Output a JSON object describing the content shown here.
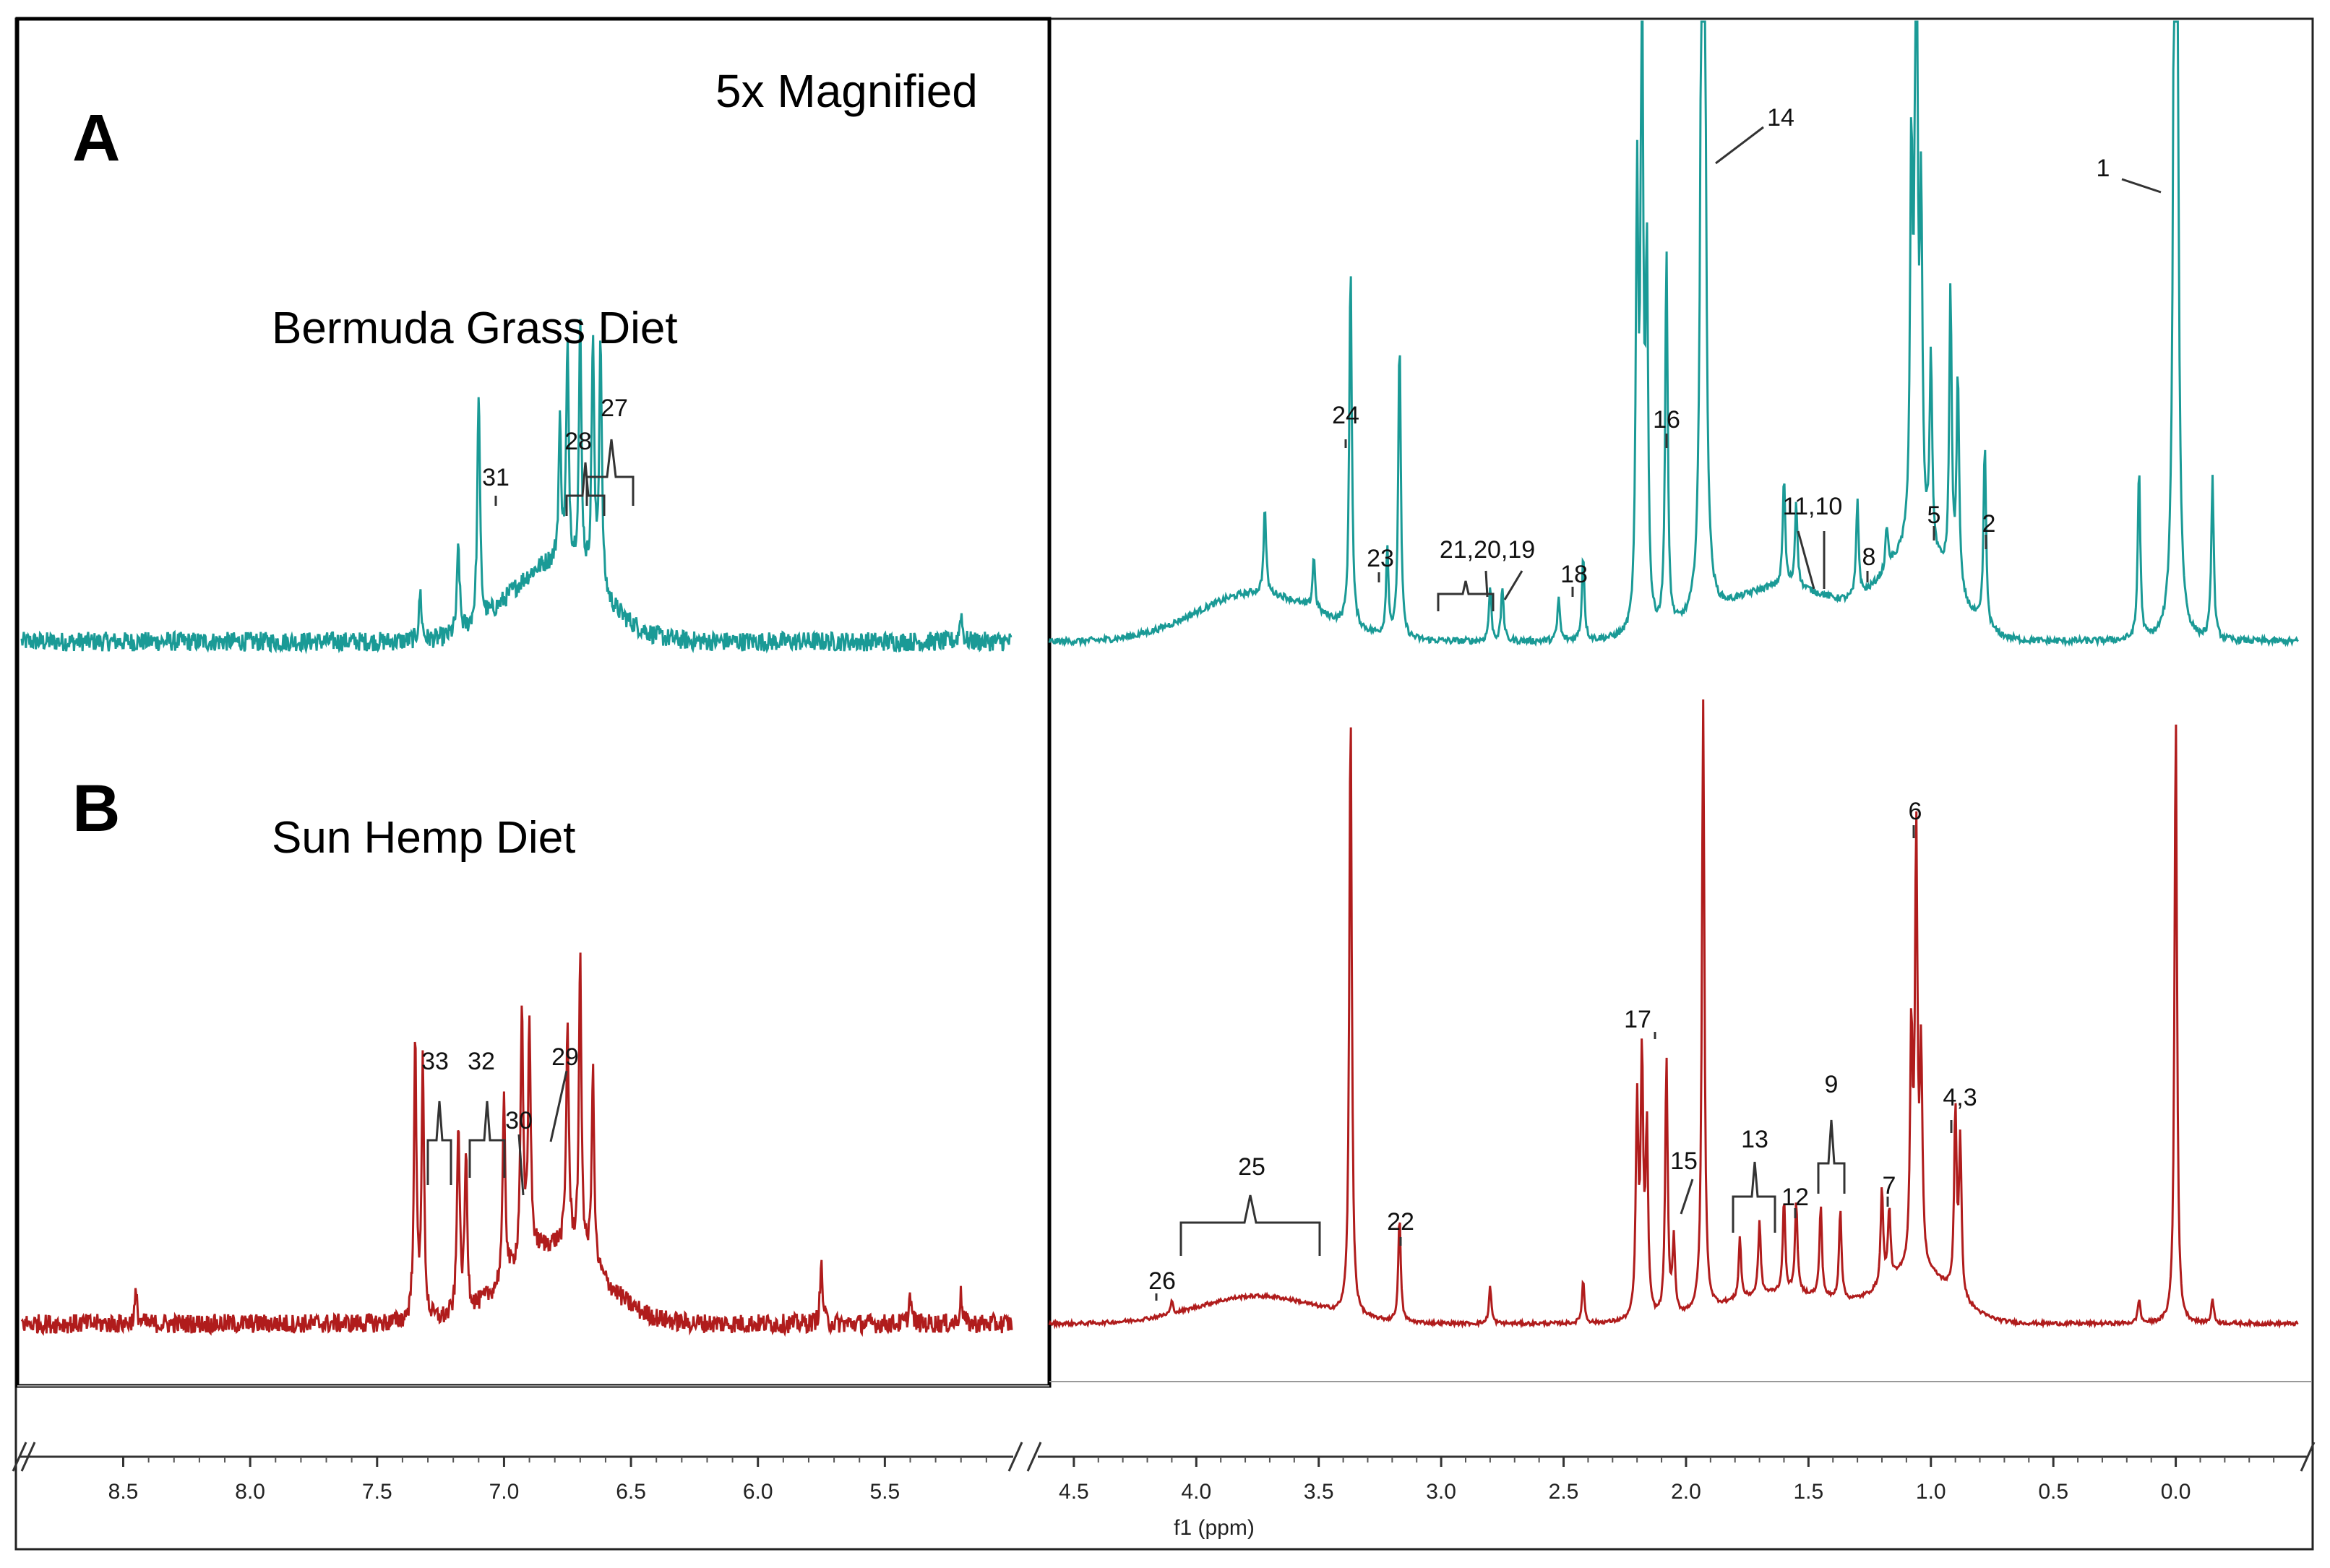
{
  "chart_data": {
    "type": "line",
    "title": "",
    "xlabel": "f1 (ppm)",
    "ylabel": "",
    "xlim_left_segment": [
      8.9,
      5.0
    ],
    "xlim_right_segment": [
      4.6,
      -0.5
    ],
    "x_axis_reversed": true,
    "broken_axis": true,
    "magnified_region_label": "5x Magnified",
    "magnified_region_factor": 5,
    "left_ticks": [
      "8.5",
      "8.0",
      "7.5",
      "7.0",
      "6.5",
      "6.0",
      "5.5"
    ],
    "left_tick_values": [
      8.5,
      8.0,
      7.5,
      7.0,
      6.5,
      6.0,
      5.5
    ],
    "right_ticks": [
      "4.5",
      "4.0",
      "3.5",
      "3.0",
      "2.5",
      "2.0",
      "1.5",
      "1.0",
      "0.5",
      "0.0"
    ],
    "right_tick_values": [
      4.5,
      4.0,
      3.5,
      3.0,
      2.5,
      2.0,
      1.5,
      1.0,
      0.5,
      0.0
    ],
    "series": [
      {
        "name": "Bermuda Grass Diet",
        "panel": "A",
        "color": "#1a9a96",
        "baseline_intensity": 0,
        "peaks": [
          {
            "ppm": 7.33,
            "height": 0.05
          },
          {
            "ppm": 7.18,
            "height": 0.09
          },
          {
            "ppm": 7.1,
            "height": 0.24
          },
          {
            "ppm": 6.78,
            "height": 0.14
          },
          {
            "ppm": 6.75,
            "height": 0.22
          },
          {
            "ppm": 6.7,
            "height": 0.25
          },
          {
            "ppm": 6.65,
            "height": 0.25
          },
          {
            "ppm": 6.62,
            "height": 0.26
          },
          {
            "ppm": 5.2,
            "height": 0.03
          },
          {
            "ppm": 3.72,
            "height": 0.08
          },
          {
            "ppm": 3.52,
            "height": 0.05
          },
          {
            "ppm": 3.37,
            "height": 0.34
          },
          {
            "ppm": 3.22,
            "height": 0.08
          },
          {
            "ppm": 3.17,
            "height": 0.28
          },
          {
            "ppm": 2.8,
            "height": 0.05
          },
          {
            "ppm": 2.75,
            "height": 0.05
          },
          {
            "ppm": 2.52,
            "height": 0.04
          },
          {
            "ppm": 2.42,
            "height": 0.08
          },
          {
            "ppm": 2.2,
            "height": 0.4
          },
          {
            "ppm": 2.18,
            "height": 0.62
          },
          {
            "ppm": 2.16,
            "height": 0.33
          },
          {
            "ppm": 2.08,
            "height": 0.35
          },
          {
            "ppm": 1.93,
            "height": 2.0
          },
          {
            "ppm": 1.6,
            "height": 0.1
          },
          {
            "ppm": 1.55,
            "height": 0.08
          },
          {
            "ppm": 1.3,
            "height": 0.09
          },
          {
            "ppm": 1.18,
            "height": 0.04
          },
          {
            "ppm": 1.08,
            "height": 0.35
          },
          {
            "ppm": 1.06,
            "height": 0.7
          },
          {
            "ppm": 1.04,
            "height": 0.3
          },
          {
            "ppm": 1.0,
            "height": 0.18
          },
          {
            "ppm": 0.92,
            "height": 0.27
          },
          {
            "ppm": 0.89,
            "height": 0.2
          },
          {
            "ppm": 0.78,
            "height": 0.17
          },
          {
            "ppm": 0.15,
            "height": 0.16
          },
          {
            "ppm": 0.0,
            "height": 2.0
          },
          {
            "ppm": -0.15,
            "height": 0.15
          }
        ]
      },
      {
        "name": "Sun Hemp Diet",
        "panel": "B",
        "color": "#b01c1c",
        "baseline_intensity": 0,
        "peaks": [
          {
            "ppm": 8.45,
            "height": 0.03
          },
          {
            "ppm": 7.35,
            "height": 0.28
          },
          {
            "ppm": 7.32,
            "height": 0.26
          },
          {
            "ppm": 7.18,
            "height": 0.2
          },
          {
            "ppm": 7.15,
            "height": 0.16
          },
          {
            "ppm": 7.0,
            "height": 0.19
          },
          {
            "ppm": 6.93,
            "height": 0.26
          },
          {
            "ppm": 6.9,
            "height": 0.24
          },
          {
            "ppm": 6.75,
            "height": 0.23
          },
          {
            "ppm": 6.7,
            "height": 0.3
          },
          {
            "ppm": 6.65,
            "height": 0.2
          },
          {
            "ppm": 5.75,
            "height": 0.06
          },
          {
            "ppm": 5.4,
            "height": 0.03
          },
          {
            "ppm": 5.2,
            "height": 0.03
          },
          {
            "ppm": 4.1,
            "height": 0.02
          },
          {
            "ppm": 3.37,
            "height": 1.0
          },
          {
            "ppm": 3.17,
            "height": 0.17
          },
          {
            "ppm": 2.8,
            "height": 0.06
          },
          {
            "ppm": 2.42,
            "height": 0.07
          },
          {
            "ppm": 2.2,
            "height": 0.35
          },
          {
            "ppm": 2.18,
            "height": 0.42
          },
          {
            "ppm": 2.16,
            "height": 0.3
          },
          {
            "ppm": 2.08,
            "height": 0.42
          },
          {
            "ppm": 2.05,
            "height": 0.12
          },
          {
            "ppm": 1.93,
            "height": 1.0
          },
          {
            "ppm": 1.78,
            "height": 0.1
          },
          {
            "ppm": 1.7,
            "height": 0.12
          },
          {
            "ppm": 1.6,
            "height": 0.15
          },
          {
            "ppm": 1.55,
            "height": 0.15
          },
          {
            "ppm": 1.45,
            "height": 0.15
          },
          {
            "ppm": 1.37,
            "height": 0.15
          },
          {
            "ppm": 1.2,
            "height": 0.16
          },
          {
            "ppm": 1.17,
            "height": 0.12
          },
          {
            "ppm": 1.08,
            "height": 0.38
          },
          {
            "ppm": 1.06,
            "height": 0.7
          },
          {
            "ppm": 1.04,
            "height": 0.34
          },
          {
            "ppm": 0.9,
            "height": 0.3
          },
          {
            "ppm": 0.88,
            "height": 0.25
          },
          {
            "ppm": 0.15,
            "height": 0.04
          },
          {
            "ppm": 0.0,
            "height": 1.0
          },
          {
            "ppm": -0.15,
            "height": 0.04
          }
        ]
      }
    ],
    "panels": [
      {
        "label": "A",
        "title": "Bermuda Grass Diet"
      },
      {
        "label": "B",
        "title": "Sun Hemp Diet"
      }
    ],
    "annotations": [
      {
        "panel": "A",
        "text": "1",
        "ppm": 0.0
      },
      {
        "panel": "A",
        "text": "2",
        "ppm": 0.78
      },
      {
        "panel": "A",
        "text": "5",
        "ppm": 0.97
      },
      {
        "panel": "A",
        "text": "8",
        "ppm": 1.3
      },
      {
        "panel": "A",
        "text": "11,10",
        "ppm": 1.48
      },
      {
        "panel": "A",
        "text": "14",
        "ppm": 1.93
      },
      {
        "panel": "A",
        "text": "16",
        "ppm": 2.08
      },
      {
        "panel": "A",
        "text": "18",
        "ppm": 2.43
      },
      {
        "panel": "A",
        "text": "21,20,19",
        "ppm": 2.85
      },
      {
        "panel": "A",
        "text": "23",
        "ppm": 3.21
      },
      {
        "panel": "A",
        "text": "24",
        "ppm": 3.37
      },
      {
        "panel": "A",
        "text": "27",
        "ppm": 6.68
      },
      {
        "panel": "A",
        "text": "28",
        "ppm": 6.8
      },
      {
        "panel": "A",
        "text": "31",
        "ppm": 7.1
      },
      {
        "panel": "B",
        "text": "4,3",
        "ppm": 0.9
      },
      {
        "panel": "B",
        "text": "6",
        "ppm": 1.06
      },
      {
        "panel": "B",
        "text": "7",
        "ppm": 1.15
      },
      {
        "panel": "B",
        "text": "9",
        "ppm": 1.4
      },
      {
        "panel": "B",
        "text": "12",
        "ppm": 1.55
      },
      {
        "panel": "B",
        "text": "13",
        "ppm": 1.72
      },
      {
        "panel": "B",
        "text": "15",
        "ppm": 2.02
      },
      {
        "panel": "B",
        "text": "17",
        "ppm": 2.18
      },
      {
        "panel": "B",
        "text": "22",
        "ppm": 3.17
      },
      {
        "panel": "B",
        "text": "25",
        "ppm": 3.75
      },
      {
        "panel": "B",
        "text": "26",
        "ppm": 4.1
      },
      {
        "panel": "B",
        "text": "29",
        "ppm": 6.92
      },
      {
        "panel": "B",
        "text": "30",
        "ppm": 7.0
      },
      {
        "panel": "B",
        "text": "32",
        "ppm": 7.18
      },
      {
        "panel": "B",
        "text": "33",
        "ppm": 7.33
      }
    ]
  }
}
